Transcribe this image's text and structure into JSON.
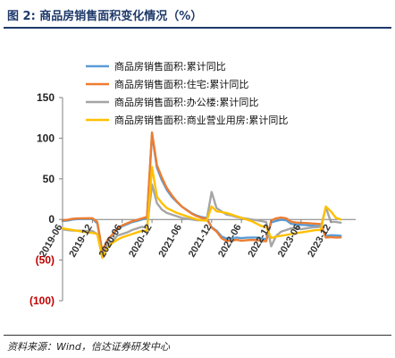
{
  "figure": {
    "title": "图 2: 商品房销售面积变化情况（%）",
    "source": "资料来源：Wind，信达证券研发中心"
  },
  "chart_data": {
    "type": "line",
    "ylim": [
      -100,
      150
    ],
    "yticks": [
      {
        "value": 150,
        "label": "150"
      },
      {
        "value": 100,
        "label": "100"
      },
      {
        "value": 50,
        "label": "50"
      },
      {
        "value": 0,
        "label": "0"
      },
      {
        "value": -50,
        "label": "(50)"
      },
      {
        "value": -100,
        "label": "(100)"
      }
    ],
    "xtick_labels": [
      "2019-06",
      "2019-12",
      "2020-06",
      "2020-12",
      "2021-06",
      "2021-12",
      "2022-06",
      "2022-12",
      "2023-06",
      "2023-12"
    ],
    "x_start": "2019-06",
    "x_end": "2024-05",
    "grid": false,
    "legend_position": "top-right",
    "series": [
      {
        "name": "商品房销售面积:累计同比",
        "color": "#5b9bd5",
        "values": [
          -1.8,
          -1.3,
          -0.1,
          0.4,
          0.7,
          0.8,
          1.0,
          -5.0,
          -39.9,
          -26.3,
          -19.3,
          -12.3,
          -8.4,
          -5.8,
          -3.3,
          -1.8,
          0.0,
          1.3,
          104.9,
          63.8,
          48.1,
          36.3,
          27.7,
          21.5,
          15.9,
          11.8,
          7.7,
          4.8,
          2.9,
          1.9,
          -9.6,
          -13.8,
          -20.9,
          -23.6,
          -23.2,
          -22.2,
          -23.0,
          -22.5,
          -22.2,
          -22.3,
          -23.3,
          -24.3,
          -3.6,
          -1.8,
          -0.4,
          -0.9,
          -5.3,
          -6.5,
          -6.6,
          -7.1,
          -7.5,
          -8.0,
          -8.5,
          -20.5,
          -19.4,
          -19.7,
          -20.0
        ]
      },
      {
        "name": "商品房销售面积:住宅:累计同比",
        "color": "#ed7d31",
        "values": [
          -0.8,
          -0.4,
          0.9,
          1.2,
          1.4,
          1.5,
          1.5,
          -3.0,
          -39.2,
          -25.8,
          -18.6,
          -11.5,
          -7.4,
          -4.7,
          -2.2,
          -0.6,
          1.3,
          3.2,
          107.1,
          66.6,
          51.4,
          38.7,
          29.7,
          22.1,
          16.0,
          11.3,
          7.2,
          4.1,
          2.0,
          1.1,
          -10.0,
          -14.9,
          -23.1,
          -26.5,
          -26.1,
          -25.0,
          -26.1,
          -25.5,
          -25.2,
          -25.3,
          -26.3,
          -26.8,
          -1.1,
          1.4,
          2.3,
          1.4,
          -2.7,
          -3.9,
          -4.1,
          -4.4,
          -4.8,
          -5.3,
          -5.7,
          -22.2,
          -21.7,
          -22.2,
          -22.1
        ]
      },
      {
        "name": "商品房销售面积:办公楼:累计同比",
        "color": "#a5a5a5",
        "values": [
          -12.1,
          -13.0,
          -13.5,
          -13.8,
          -14.0,
          -14.2,
          -14.3,
          -18.0,
          -44.6,
          -31.0,
          -27.0,
          -20.0,
          -18.0,
          -16.0,
          -13.0,
          -11.0,
          -9.0,
          -10.4,
          43.1,
          20.0,
          12.0,
          8.0,
          6.0,
          4.0,
          2.0,
          1.0,
          0.0,
          -1.0,
          -1.0,
          -1.0,
          33.8,
          14.0,
          10.0,
          6.0,
          5.0,
          3.0,
          2.0,
          1.0,
          0.0,
          -1.0,
          -2.0,
          -3.2,
          -33.0,
          -20.0,
          -15.0,
          -13.0,
          -11.0,
          -10.0,
          -12.0,
          -11.0,
          -10.0,
          -9.5,
          -9.0,
          15.0,
          -3.0,
          -3.0,
          -4.0
        ]
      },
      {
        "name": "商品房销售面积:商业营业用房:累计同比",
        "color": "#ffc000",
        "values": [
          -11.0,
          -12.0,
          -13.0,
          -14.0,
          -15.0,
          -16.0,
          -16.5,
          -18.0,
          -47.2,
          -35.0,
          -29.0,
          -25.0,
          -22.0,
          -20.0,
          -18.0,
          -16.0,
          -14.0,
          -14.0,
          64.5,
          28.0,
          20.0,
          14.0,
          11.0,
          8.0,
          6.0,
          4.0,
          2.0,
          0.0,
          -1.0,
          -1.5,
          16.0,
          10.0,
          9.0,
          8.0,
          6.0,
          4.0,
          2.0,
          0.0,
          -2.0,
          -5.0,
          -8.0,
          -8.9,
          -22.9,
          -21.0,
          -20.0,
          -19.0,
          -18.0,
          -17.0,
          -16.0,
          -15.0,
          -14.0,
          -13.0,
          -13.1,
          16.0,
          10.0,
          2.0,
          0.0
        ]
      }
    ]
  }
}
